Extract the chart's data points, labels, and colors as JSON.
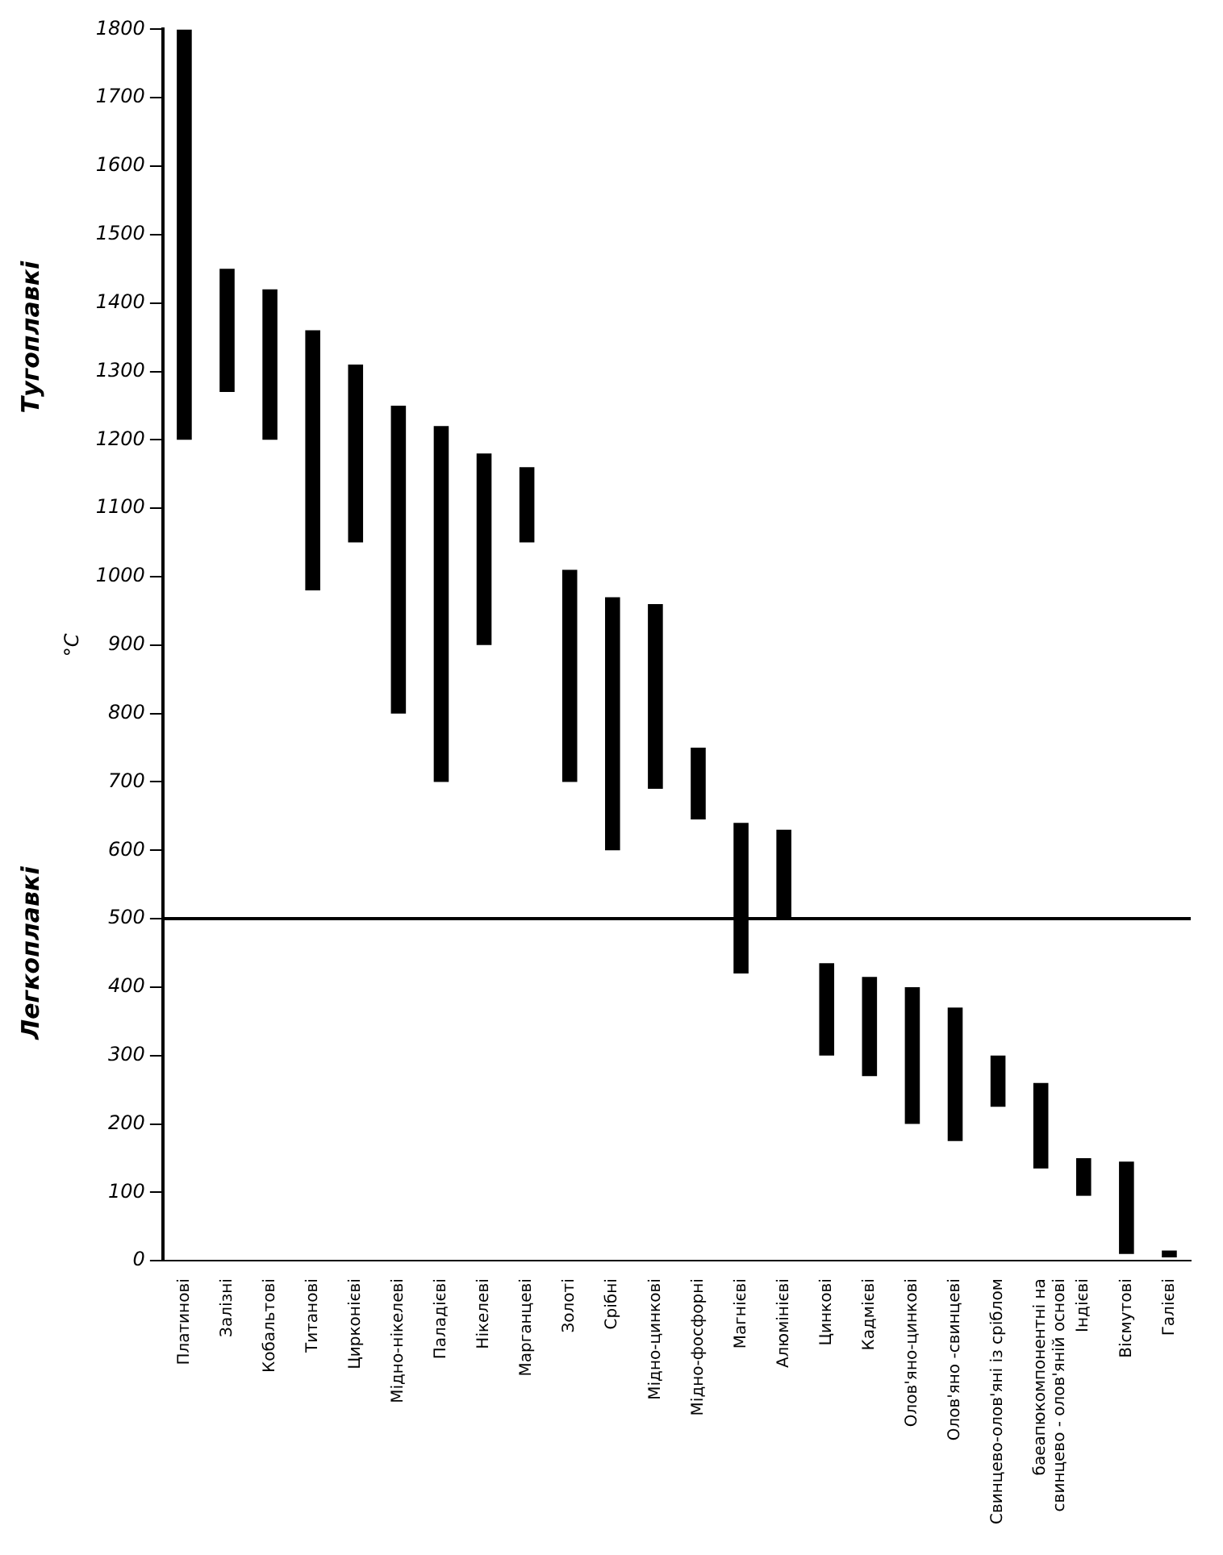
{
  "chart_data": {
    "type": "bar",
    "ylabel": "°C",
    "categories": [
      "Платинові",
      "Залізні",
      "Кобальтові",
      "Титанові",
      "Цирконієві",
      "Мідно-нікелеві",
      "Паладієві",
      "Нікелеві",
      "Марганцеві",
      "Золоті",
      "Срібні",
      "Мідно-цинкові",
      "Мідно-фосфорні",
      "Магнієві",
      "Алюмінієві",
      "Цинкові",
      "Кадмієві",
      "Олов'яно-цинкові",
      "Олов'яно -свинцеві",
      "Свинцево-олов'яні із сріблом",
      "баеапюкомпонентні на свинцево - олов'яній основі",
      "Індієві",
      "Вісмутові",
      "Галієві"
    ],
    "series": [
      {
        "color": "#000000",
        "values": [
          600,
          180,
          220,
          380,
          260,
          450,
          520,
          280,
          110,
          310,
          370,
          270,
          105,
          220,
          130,
          135,
          145,
          200,
          195,
          75,
          125,
          55,
          135,
          10
        ],
        "base": [
          1200,
          1270,
          1200,
          980,
          1050,
          800,
          700,
          900,
          1050,
          700,
          600,
          690,
          645,
          420,
          500,
          300,
          270,
          200,
          175,
          225,
          135,
          95,
          10,
          5
        ]
      }
    ],
    "ylim": [
      0,
      1800
    ],
    "yticks": [
      0,
      100,
      200,
      300,
      400,
      500,
      600,
      700,
      800,
      900,
      1000,
      1100,
      1200,
      1300,
      1400,
      1500,
      1600,
      1700,
      1800
    ],
    "ref_lines": [
      {
        "axis": "y",
        "value": 500,
        "color": "#000000"
      }
    ],
    "annotations": [
      "Тугоплавкі",
      "Легкоплавкі"
    ],
    "grid": false,
    "legend": false
  }
}
